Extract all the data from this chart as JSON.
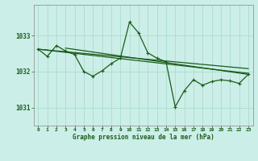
{
  "background_color": "#cceee8",
  "plot_bg_color": "#cceee8",
  "grid_color": "#aaddcc",
  "line_color": "#1a5c1a",
  "title": "Graphe pression niveau de la mer (hPa)",
  "xlim": [
    -0.5,
    23.5
  ],
  "ylim": [
    1030.5,
    1033.85
  ],
  "yticks": [
    1031,
    1032,
    1033
  ],
  "xticks": [
    0,
    1,
    2,
    3,
    4,
    5,
    6,
    7,
    8,
    9,
    10,
    11,
    12,
    13,
    14,
    15,
    16,
    17,
    18,
    19,
    20,
    21,
    22,
    23
  ],
  "hourly": [
    1032.62,
    1032.42,
    1032.72,
    1032.57,
    1032.47,
    1032.0,
    1031.87,
    1032.02,
    1032.22,
    1032.37,
    1033.37,
    1033.07,
    1032.52,
    1032.37,
    1032.27,
    1031.02,
    1031.47,
    1031.77,
    1031.62,
    1031.72,
    1031.77,
    1031.74,
    1031.67,
    1031.92
  ],
  "trend_lines": [
    {
      "x": [
        0,
        23
      ],
      "y": [
        1032.62,
        1031.95
      ]
    },
    {
      "x": [
        0,
        23
      ],
      "y": [
        1032.62,
        1032.08
      ]
    },
    {
      "x": [
        3,
        23
      ],
      "y": [
        1032.65,
        1031.92
      ]
    }
  ]
}
